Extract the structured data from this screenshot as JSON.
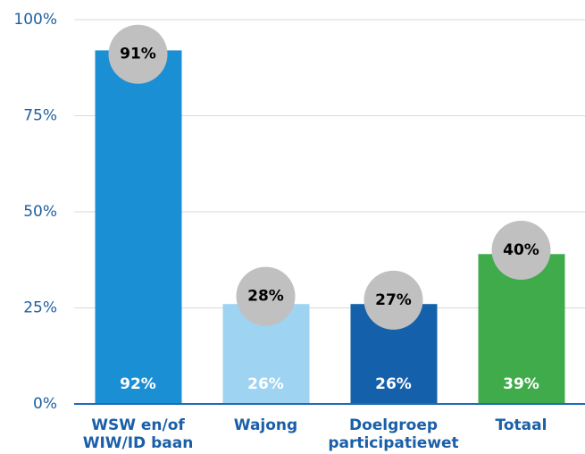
{
  "chart_data": {
    "type": "bar",
    "categories": [
      [
        "WSW en/of",
        "WIW/ID baan"
      ],
      [
        "Wajong"
      ],
      [
        "Doelgroep",
        "participatiewet"
      ],
      [
        "Totaal"
      ]
    ],
    "values": [
      92,
      26,
      26,
      39
    ],
    "value_labels": [
      "92%",
      "26%",
      "26%",
      "39%"
    ],
    "colors": [
      "#1a8fd4",
      "#9ed3f2",
      "#1560ab",
      "#3fab4a"
    ],
    "markers": {
      "values": [
        91,
        28,
        27,
        40
      ],
      "value_labels": [
        "91%",
        "28%",
        "27%",
        "40%"
      ],
      "color": "#c0c0c0"
    },
    "ylim": [
      0,
      100
    ],
    "yticks": [
      {
        "value": 0,
        "label": "0%"
      },
      {
        "value": 25,
        "label": "25%"
      },
      {
        "value": 50,
        "label": "50%"
      },
      {
        "value": 75,
        "label": "75%"
      },
      {
        "value": 100,
        "label": "100%"
      }
    ],
    "grid": true
  }
}
